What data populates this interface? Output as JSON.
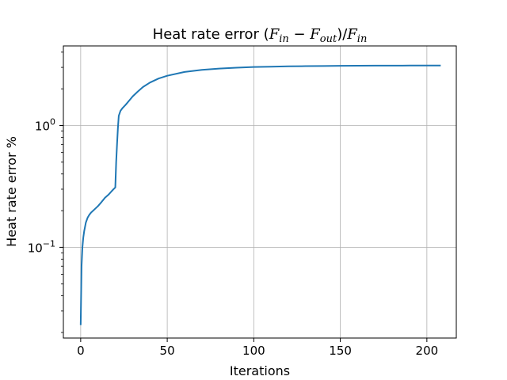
{
  "chart_data": {
    "type": "line",
    "title": {
      "prefix": "Heat rate error ",
      "open_paren": "(",
      "var1": "F",
      "sub1": "in",
      "minus": " − ",
      "var2": "F",
      "sub2": "out",
      "close_div": ")/",
      "var3": "F",
      "sub3": "in"
    },
    "xlabel": "Iterations",
    "ylabel": "Heat rate error %",
    "xscale": "linear",
    "yscale": "log",
    "xlim": [
      -10,
      217
    ],
    "ylim": [
      0.018,
      4.5
    ],
    "xticks": [
      {
        "value": 0,
        "label": "0"
      },
      {
        "value": 50,
        "label": "50"
      },
      {
        "value": 100,
        "label": "100"
      },
      {
        "value": 150,
        "label": "150"
      },
      {
        "value": 200,
        "label": "200"
      }
    ],
    "yticks": [
      {
        "value": 0.1,
        "base": "10",
        "exp": "−1"
      },
      {
        "value": 1,
        "base": "10",
        "exp": "0"
      }
    ],
    "grid": true,
    "series": [
      {
        "color": "#1f77b4",
        "x": [
          0,
          0.5,
          1,
          1.5,
          2,
          3,
          4,
          5,
          6,
          8,
          10,
          12,
          14,
          16,
          18,
          19,
          20,
          20.5,
          21,
          21.5,
          22,
          23,
          24,
          26,
          28,
          30,
          33,
          36,
          40,
          45,
          50,
          60,
          70,
          80,
          90,
          100,
          110,
          120,
          130,
          140,
          150,
          160,
          170,
          180,
          190,
          200,
          208
        ],
        "y": [
          0.023,
          0.07,
          0.1,
          0.12,
          0.135,
          0.16,
          0.175,
          0.185,
          0.193,
          0.205,
          0.218,
          0.235,
          0.255,
          0.27,
          0.29,
          0.3,
          0.31,
          0.5,
          0.7,
          0.95,
          1.2,
          1.32,
          1.38,
          1.48,
          1.6,
          1.73,
          1.9,
          2.07,
          2.25,
          2.43,
          2.56,
          2.75,
          2.86,
          2.93,
          2.98,
          3.02,
          3.04,
          3.06,
          3.07,
          3.08,
          3.09,
          3.095,
          3.1,
          3.1,
          3.105,
          3.11,
          3.11
        ]
      }
    ]
  }
}
